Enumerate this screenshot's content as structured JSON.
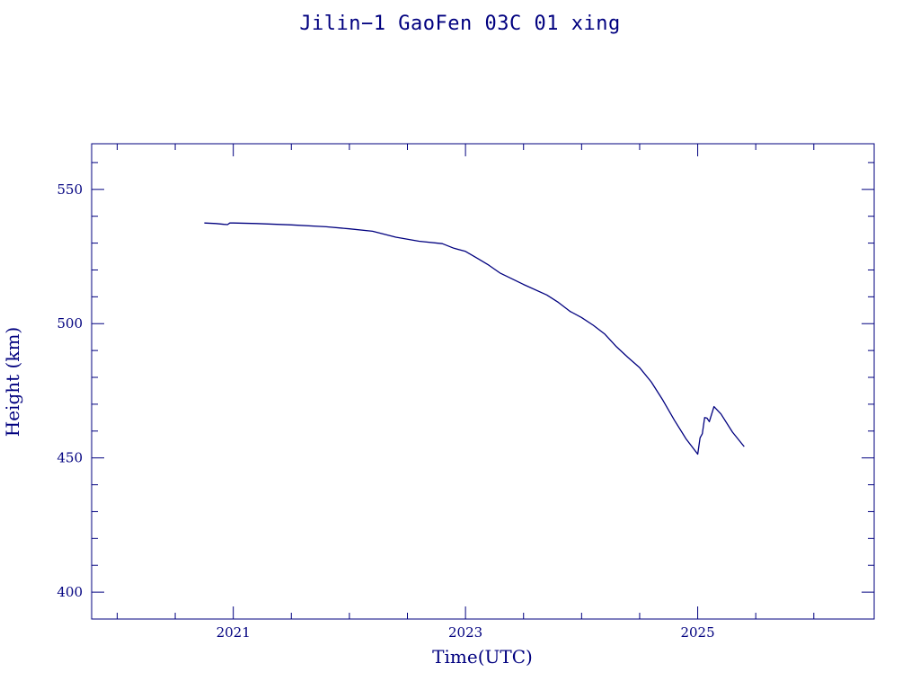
{
  "chart_data": {
    "type": "line",
    "title": "Jilin−1 GaoFen 03C 01 xing",
    "xlabel": "Time(UTC)",
    "ylabel": "Height (km)",
    "xlim": [
      2019.78,
      2026.52
    ],
    "ylim": [
      390,
      567
    ],
    "x_major_ticks": [
      2021,
      2023,
      2025
    ],
    "x_minor_ticks": [
      2020,
      2020.5,
      2021.5,
      2022,
      2022.5,
      2023.5,
      2024,
      2024.5,
      2025.5,
      2026
    ],
    "y_major_ticks": [
      400,
      450,
      500,
      550
    ],
    "y_minor_ticks": [
      410,
      420,
      430,
      440,
      460,
      470,
      480,
      490,
      510,
      520,
      530,
      540,
      560
    ],
    "x_tick_labels": [
      "2021",
      "2023",
      "2025"
    ],
    "y_tick_labels": [
      "400",
      "450",
      "500",
      "550"
    ],
    "grid": false,
    "color": "#00007f",
    "series": [
      {
        "x": [
          2020.75,
          2020.85,
          2020.92,
          2020.95,
          2020.97,
          2021.0,
          2021.2,
          2021.5,
          2021.8,
          2022.0,
          2022.2,
          2022.4,
          2022.6,
          2022.8,
          2022.9,
          2023.0,
          2023.1,
          2023.2,
          2023.3,
          2023.5,
          2023.7,
          2023.8,
          2023.9,
          2024.0,
          2024.1,
          2024.2,
          2024.3,
          2024.4,
          2024.5,
          2024.6,
          2024.7,
          2024.8,
          2024.9,
          2025.0,
          2025.02,
          2025.04,
          2025.06,
          2025.08,
          2025.1,
          2025.14,
          2025.2,
          2025.3,
          2025.4
        ],
        "y": [
          537.5,
          537.3,
          537.0,
          536.9,
          537.5,
          537.5,
          537.3,
          536.8,
          536.1,
          535.3,
          534.4,
          532.2,
          530.7,
          529.8,
          528.1,
          526.9,
          524.4,
          521.8,
          518.8,
          514.6,
          510.7,
          507.9,
          504.6,
          502.3,
          499.4,
          496.1,
          491.4,
          487.4,
          483.6,
          478.3,
          471.5,
          464.0,
          457.1,
          451.4,
          457.5,
          459.0,
          465.0,
          464.8,
          463.5,
          469.1,
          466.4,
          459.6,
          454.2
        ]
      }
    ]
  }
}
